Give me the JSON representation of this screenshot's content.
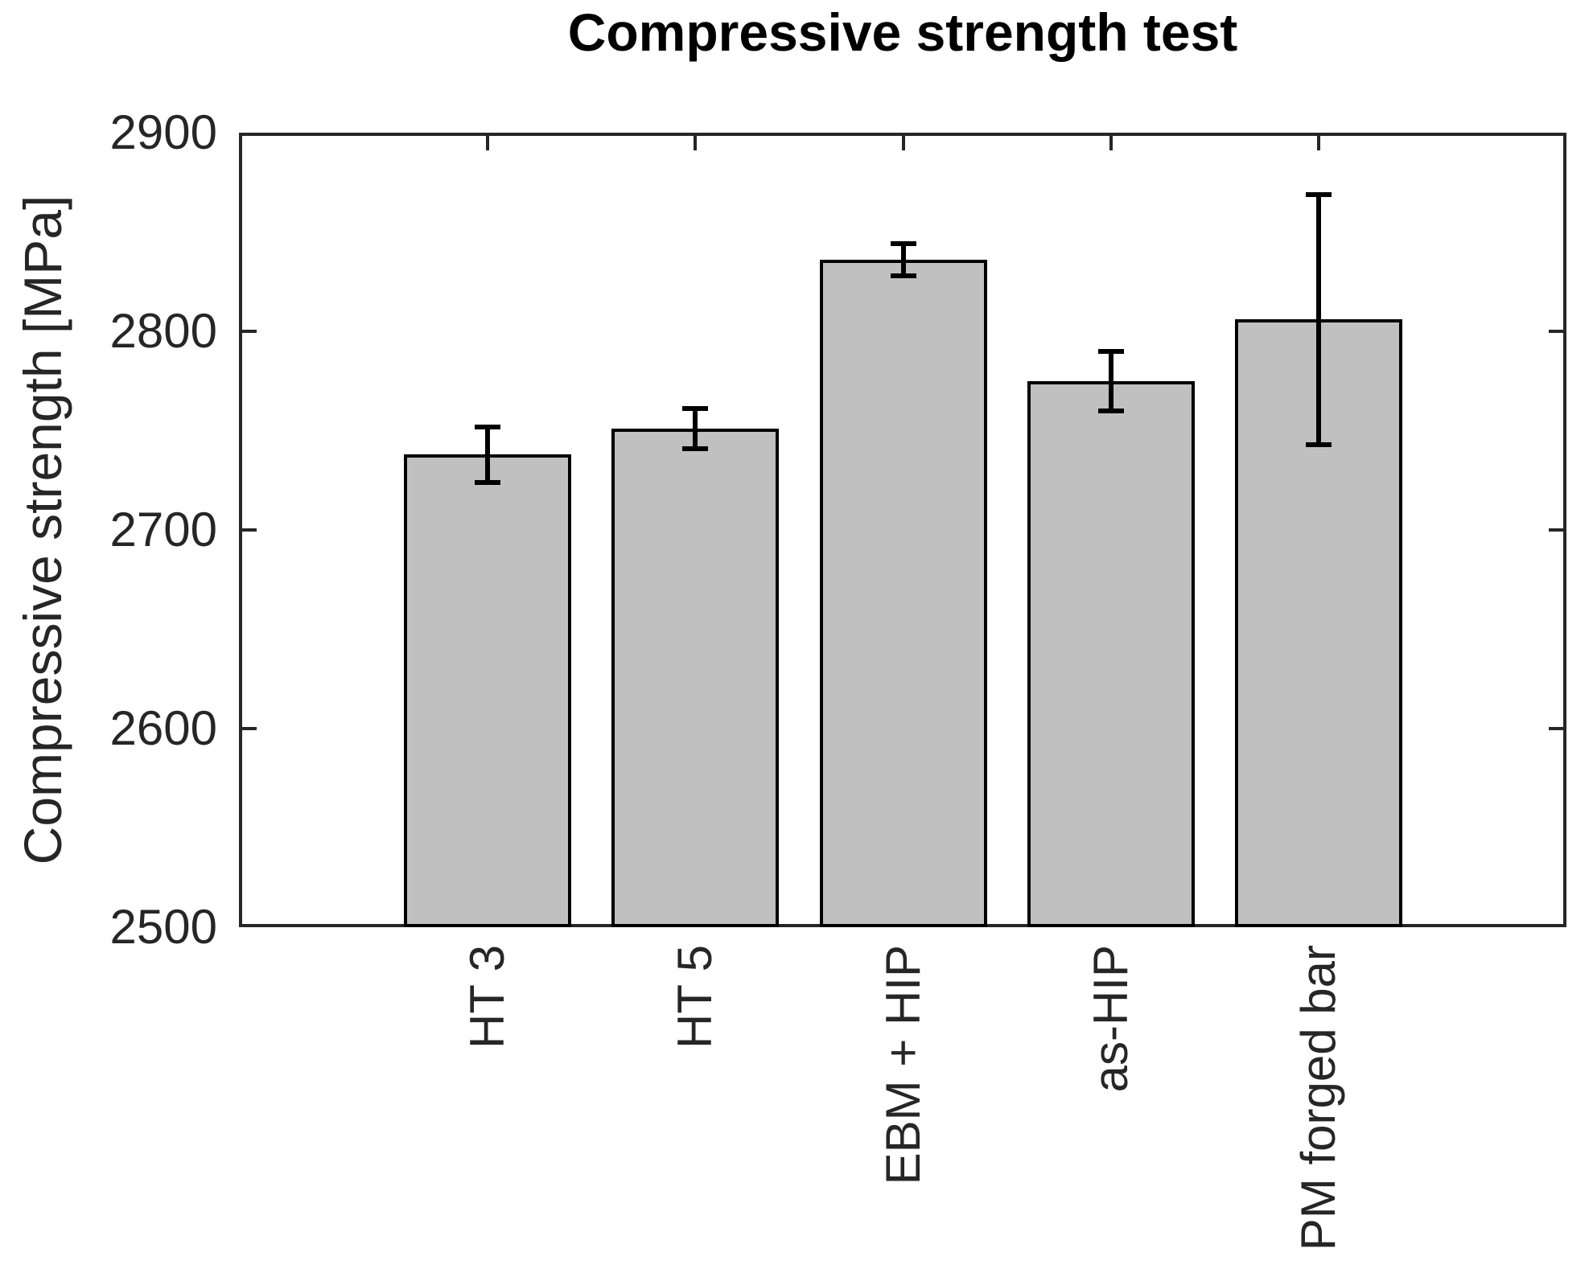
{
  "chart_data": {
    "type": "bar",
    "title": "Compressive strength test",
    "xlabel": "",
    "ylabel": "Compressive strength [MPa]",
    "categories": [
      "HT 3",
      "HT 5",
      "EBM + HIP",
      "as-HIP",
      "PM forged bar"
    ],
    "values": [
      2738,
      2751,
      2836,
      2775,
      2806
    ],
    "errors": [
      14,
      10,
      8,
      15,
      63
    ],
    "ylim": [
      2500,
      2900
    ],
    "yticks": [
      2500,
      2600,
      2700,
      2800,
      2900
    ],
    "grid": false,
    "legend_position": "none",
    "bar_color": "#c0c0c0",
    "bar_edge_color": "#000000",
    "error_bar_color": "#000000",
    "axis_color": "#262626",
    "title_color": "#000000",
    "background_color": "#ffffff"
  }
}
